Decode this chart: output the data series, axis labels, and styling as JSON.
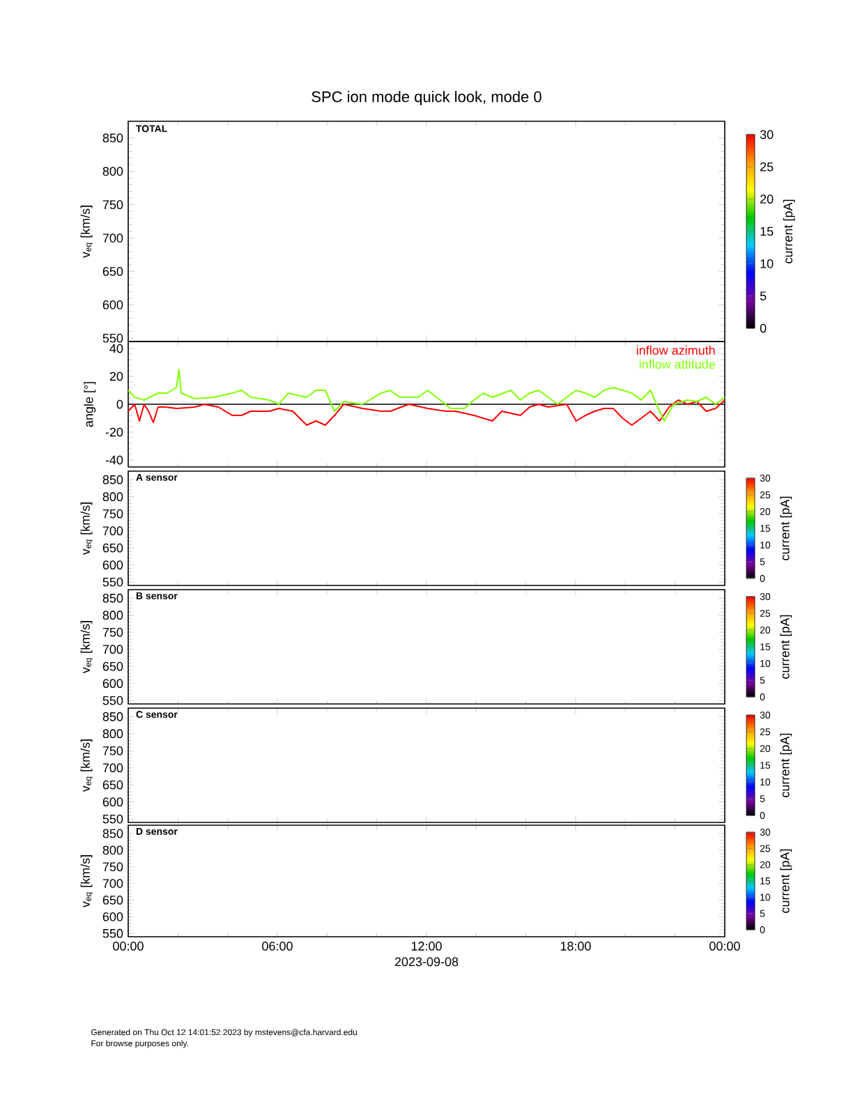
{
  "chart_data": [
    {
      "type": "heatmap",
      "title": "SPC ion mode quick look, mode 0",
      "ylabel": "v$_{eq}$ [km/s]",
      "clabel": "current [pA]",
      "annotations": [
        "TOTAL"
      ],
      "clim": [
        0,
        30
      ],
      "cticks": [
        0,
        5,
        10,
        15,
        20,
        25,
        30
      ],
      "xlim": [
        0,
        24
      ],
      "ylim": [
        545,
        875
      ],
      "yticks": [
        550,
        600,
        650,
        700,
        750,
        800,
        850
      ],
      "tick_labels": "y"
    },
    {
      "type": "line",
      "ylabel": "angle [°]",
      "legend": "top right",
      "tick_labels": "y",
      "xlim": [
        0,
        24
      ],
      "ylim": [
        -45,
        45
      ],
      "yticks": [
        -40,
        -20,
        0,
        20,
        40
      ],
      "ref_lines": [
        {
          "axis": "y",
          "value": 0,
          "color": "#000000"
        }
      ],
      "series": [
        {
          "name": "inflow azimuth",
          "color": "#ff0000",
          "x": [
            0,
            0.26,
            0.45,
            0.64,
            0.82,
            1.01,
            1.2,
            1.48,
            1.94,
            2.69,
            3.07,
            3.63,
            4.19,
            4.56,
            4.93,
            5.68,
            6.06,
            6.62,
            7.18,
            7.55,
            7.93,
            8.3,
            8.67,
            9.42,
            10.17,
            10.54,
            11.29,
            12.04,
            12.79,
            13.16,
            13.91,
            14.28,
            14.65,
            15.03,
            15.78,
            16.15,
            16.52,
            16.9,
            17.64,
            18.02,
            18.39,
            18.77,
            19.14,
            19.51,
            19.89,
            20.26,
            20.64,
            21.01,
            21.38,
            21.76,
            22.13,
            22.5,
            22.88,
            23.25,
            23.63,
            24
          ],
          "values": [
            -5,
            0,
            -12,
            0,
            -5,
            -13,
            -2,
            -2,
            -3,
            -2,
            0,
            -2,
            -8,
            -8,
            -5,
            -5,
            -3,
            -5,
            -15,
            -12,
            -15,
            -8,
            0,
            -3,
            -5,
            -5,
            0,
            -3,
            -5,
            -5,
            -8,
            -10,
            -12,
            -5,
            -8,
            -2,
            0,
            -2,
            0,
            -12,
            -8,
            -5,
            -3,
            -3,
            -10,
            -15,
            -10,
            -5,
            -12,
            -2,
            3,
            0,
            2,
            -5,
            -3,
            3
          ]
        },
        {
          "name": "inflow attitude",
          "color": "#7fff00",
          "x": [
            0,
            0.26,
            0.64,
            1.2,
            1.57,
            1.94,
            2.04,
            2.13,
            2.69,
            3.44,
            4.19,
            4.56,
            4.93,
            5.68,
            6.06,
            6.43,
            7.18,
            7.55,
            7.93,
            8.3,
            8.67,
            9.42,
            10.17,
            10.54,
            10.92,
            11.66,
            12.04,
            12.41,
            12.97,
            13.53,
            13.91,
            14.28,
            14.65,
            15.4,
            15.78,
            16.15,
            16.52,
            16.9,
            17.27,
            17.64,
            18.02,
            18.39,
            18.77,
            19.14,
            19.51,
            20.26,
            20.64,
            21.01,
            21.38,
            21.57,
            21.94,
            22.5,
            22.88,
            23.25,
            23.63,
            24
          ],
          "values": [
            10,
            5,
            3,
            8,
            8,
            12,
            25,
            8,
            4,
            5,
            8,
            10,
            5,
            3,
            0,
            8,
            5,
            10,
            10,
            -5,
            2,
            0,
            8,
            10,
            5,
            5,
            10,
            5,
            -3,
            -3,
            3,
            8,
            5,
            10,
            3,
            8,
            10,
            5,
            0,
            5,
            10,
            8,
            5,
            10,
            12,
            8,
            3,
            10,
            -5,
            -12,
            0,
            3,
            2,
            5,
            0,
            5
          ]
        }
      ]
    },
    {
      "type": "heatmap",
      "ylabel": "v$_{eq}$ [km/s]",
      "clabel": "current [pA]",
      "annotations": [
        "A sensor"
      ],
      "clim": [
        0,
        30
      ],
      "cticks": [
        0,
        5,
        10,
        15,
        20,
        25,
        30
      ],
      "xlim": [
        0,
        24
      ],
      "ylim": [
        540,
        875
      ],
      "yticks": [
        550,
        600,
        650,
        700,
        750,
        800,
        850
      ],
      "tick_labels": "y"
    },
    {
      "type": "heatmap",
      "ylabel": "v$_{eq}$ [km/s]",
      "clabel": "current [pA]",
      "annotations": [
        "B sensor"
      ],
      "clim": [
        0,
        30
      ],
      "cticks": [
        0,
        5,
        10,
        15,
        20,
        25,
        30
      ],
      "xlim": [
        0,
        24
      ],
      "ylim": [
        540,
        875
      ],
      "yticks": [
        550,
        600,
        650,
        700,
        750,
        800,
        850
      ],
      "tick_labels": "y"
    },
    {
      "type": "heatmap",
      "ylabel": "v$_{eq}$ [km/s]",
      "clabel": "current [pA]",
      "annotations": [
        "C sensor"
      ],
      "clim": [
        0,
        30
      ],
      "cticks": [
        0,
        5,
        10,
        15,
        20,
        25,
        30
      ],
      "xlim": [
        0,
        24
      ],
      "ylim": [
        540,
        875
      ],
      "yticks": [
        550,
        600,
        650,
        700,
        750,
        800,
        850
      ],
      "tick_labels": "y"
    },
    {
      "type": "heatmap",
      "ylabel": "v$_{eq}$ [km/s]",
      "clabel": "current [pA]",
      "xlabel": "2023-09-08",
      "annotations": [
        "D sensor",
        "Generated on Thu Oct 12 14:01:52 2023 by mstevens@cfa.harvard.edu",
        "For browse purposes only."
      ],
      "clim": [
        0,
        30
      ],
      "cticks": [
        0,
        5,
        10,
        15,
        20,
        25,
        30
      ],
      "xlim": [
        0,
        24
      ],
      "ylim": [
        540,
        875
      ],
      "yticks": [
        550,
        600,
        650,
        700,
        750,
        800,
        850
      ],
      "xticks": [
        {
          "value": 0,
          "label": "00:00"
        },
        {
          "value": 6,
          "label": "06:00"
        },
        {
          "value": 12,
          "label": "12:00"
        },
        {
          "value": 18,
          "label": "18:00"
        },
        {
          "value": 24,
          "label": "00:00"
        }
      ]
    }
  ]
}
